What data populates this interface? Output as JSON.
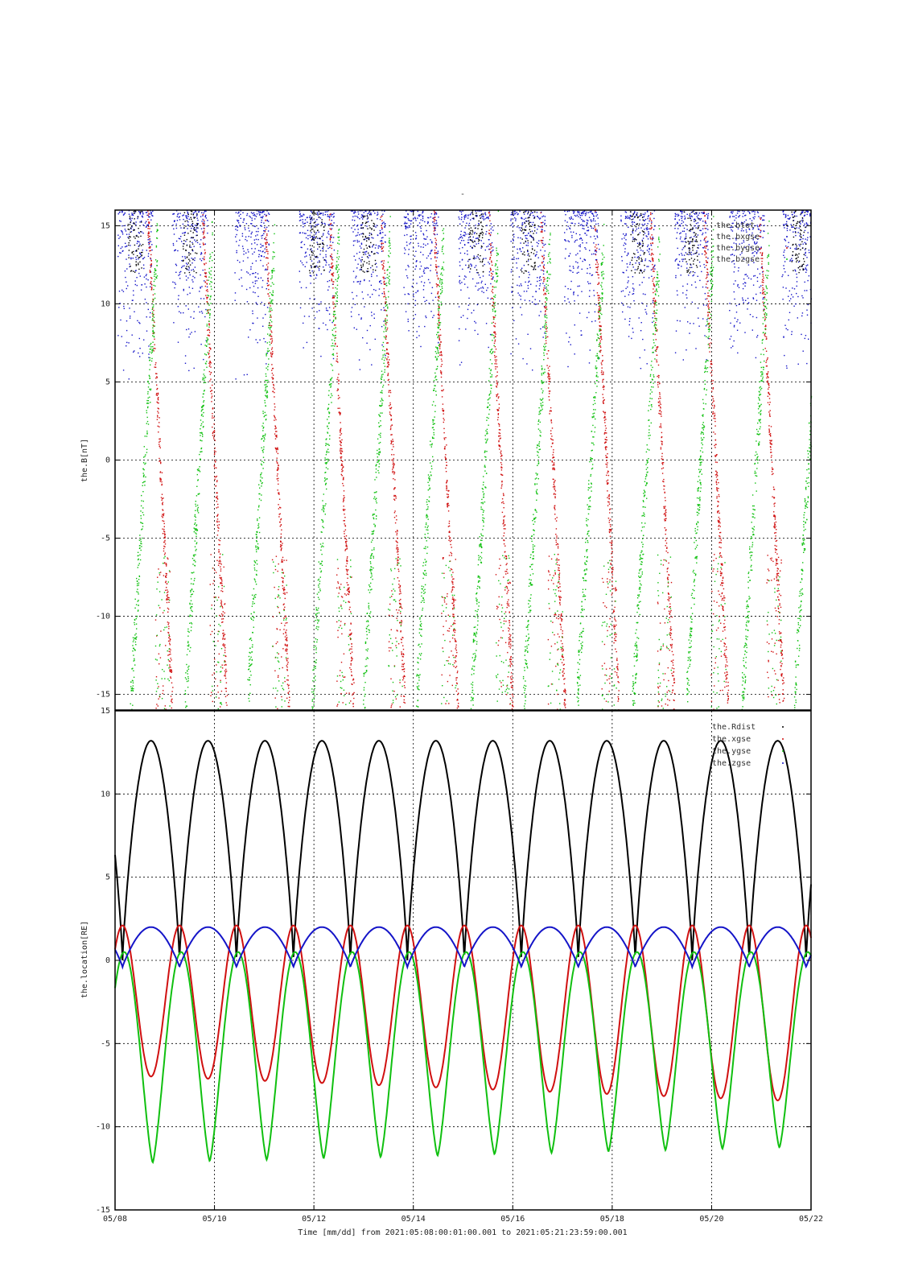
{
  "chart_data": [
    {
      "type": "scatter",
      "panel": "magnetic-field",
      "title": "-",
      "ylabel": "the.B[nT]",
      "ylim": [
        -16,
        16
      ],
      "yticks": [
        -15,
        -10,
        -5,
        0,
        5,
        10,
        15
      ],
      "ytick_labels": [
        "-15",
        "-10",
        "-5",
        "0",
        "5",
        "10",
        "15"
      ],
      "x_range_days": [
        0,
        14
      ],
      "grid": true,
      "legend_position": "top-right",
      "series": [
        {
          "name": "the.btot",
          "color": "#000000",
          "note": "plotted only at low altitude segments near each perigee; values 12-16 nT shown within range"
        },
        {
          "name": "the.bxgse",
          "color": "#1414c8"
        },
        {
          "name": "the.bygse",
          "color": "#d01010"
        },
        {
          "name": "the.bzgse",
          "color": "#10c010"
        }
      ],
      "perigees_days": [
        0.4,
        1.5,
        2.75,
        4.05,
        5.08,
        6.15,
        7.25,
        8.3,
        9.38,
        10.5,
        11.58,
        12.7,
        13.75
      ]
    },
    {
      "type": "line",
      "panel": "location",
      "ylabel": "the.location[RE]",
      "ylim": [
        -15,
        15
      ],
      "yticks": [
        -15,
        -10,
        -5,
        0,
        5,
        10,
        15
      ],
      "ytick_labels": [
        "-15",
        "-10",
        "-5",
        "0",
        "5",
        "10",
        "15"
      ],
      "x_range_days": [
        0,
        14
      ],
      "grid": true,
      "legend_position": "top-right",
      "orbit_period_days": 1.146,
      "series": [
        {
          "name": "the.Rdist",
          "color": "#000000",
          "apogee": 13.2,
          "perigee_value": 0.1
        },
        {
          "name": "the.xgse",
          "color": "#d01010",
          "min_start": -6.9,
          "min_end": -8.5,
          "max": 2.1
        },
        {
          "name": "the.ygse",
          "color": "#10c010",
          "min_start": -12.2,
          "min_end": -11.2,
          "max": 0.5
        },
        {
          "name": "the.zgse",
          "color": "#1414c8",
          "max": 2.0,
          "min": -0.4
        }
      ],
      "apogee_days": [
        0.7,
        1.85,
        3.0,
        4.15,
        5.3,
        6.4,
        7.55,
        8.7,
        9.85,
        11.0,
        12.1,
        13.25
      ],
      "minima_days_x": [
        0.15,
        1.3,
        2.45,
        3.6,
        4.75,
        5.9,
        7.05,
        8.2,
        9.35,
        10.5,
        11.65,
        12.8,
        13.95
      ]
    }
  ],
  "x_axis": {
    "tick_labels": [
      "05/08",
      "05/10",
      "05/12",
      "05/14",
      "05/16",
      "05/18",
      "05/20",
      "05/22"
    ],
    "caption": "Time [mm/dd]  from 2021:05:08:00:01:00.001  to  2021:05:21:23:59:00.001"
  }
}
